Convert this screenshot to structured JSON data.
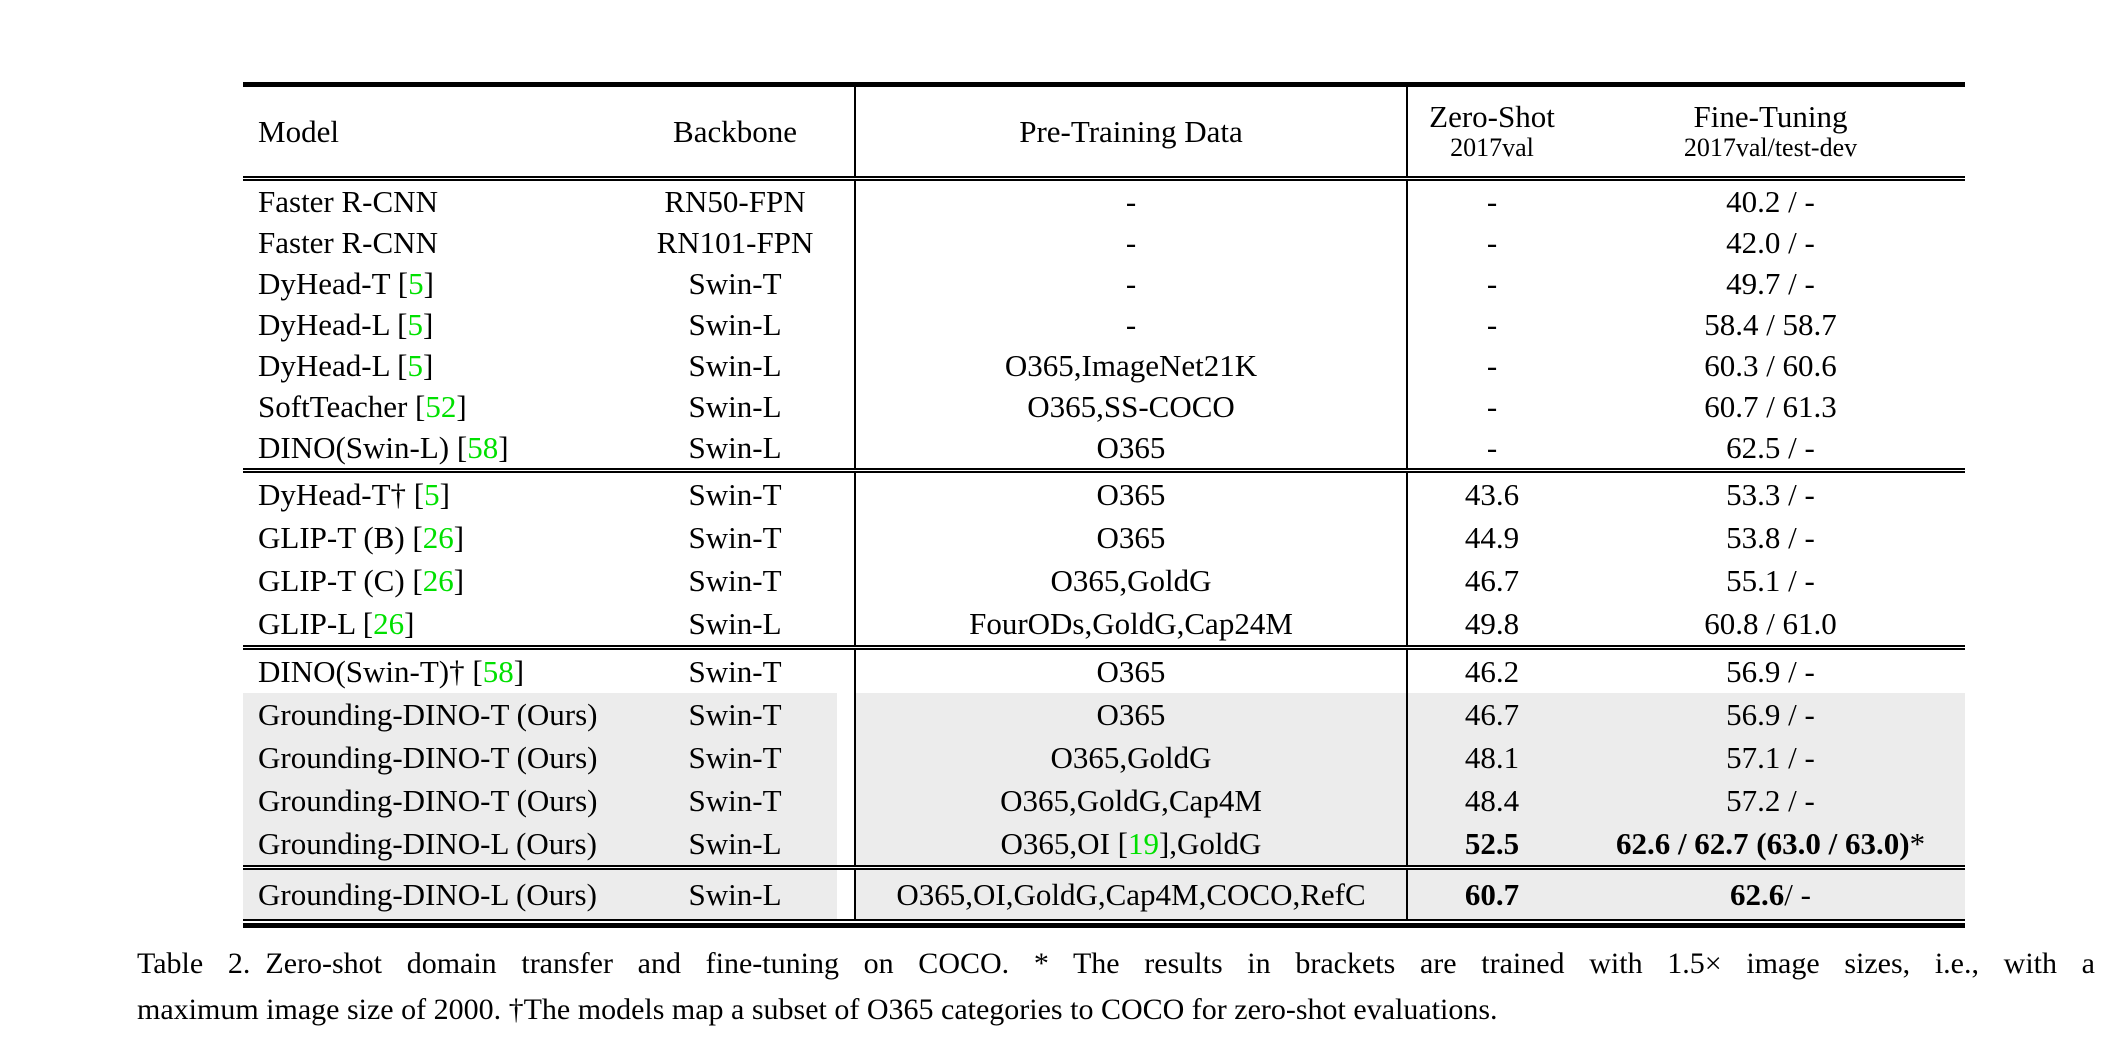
{
  "colors": {
    "citation_green": "#00E000",
    "row_shade": "#ECECEC"
  },
  "table": {
    "columns": {
      "model": "Model",
      "backbone": "Backbone",
      "pretrain": "Pre-Training Data",
      "zeroshot_title": "Zero-Shot",
      "zeroshot_sub": "2017val",
      "finetune_title": "Fine-Tuning",
      "finetune_sub": "2017val/test-dev"
    },
    "groups": [
      {
        "rows": [
          {
            "model": [
              {
                "t": "Faster R-CNN"
              }
            ],
            "backbone": "RN50-FPN",
            "pretrain": [
              {
                "t": "-"
              }
            ],
            "zs": "-",
            "ft": [
              {
                "t": "40.2 / -"
              }
            ]
          },
          {
            "model": [
              {
                "t": "Faster R-CNN"
              }
            ],
            "backbone": "RN101-FPN",
            "pretrain": [
              {
                "t": "-"
              }
            ],
            "zs": "-",
            "ft": [
              {
                "t": "42.0 / -"
              }
            ]
          },
          {
            "model": [
              {
                "t": "DyHead-T ["
              },
              {
                "t": "5",
                "g": true
              },
              {
                "t": "]"
              }
            ],
            "backbone": "Swin-T",
            "pretrain": [
              {
                "t": "-"
              }
            ],
            "zs": "-",
            "ft": [
              {
                "t": "49.7 / -"
              }
            ]
          },
          {
            "model": [
              {
                "t": "DyHead-L ["
              },
              {
                "t": "5",
                "g": true
              },
              {
                "t": "]"
              }
            ],
            "backbone": "Swin-L",
            "pretrain": [
              {
                "t": "-"
              }
            ],
            "zs": "-",
            "ft": [
              {
                "t": "58.4 / 58.7"
              }
            ]
          },
          {
            "model": [
              {
                "t": "DyHead-L ["
              },
              {
                "t": "5",
                "g": true
              },
              {
                "t": "]"
              }
            ],
            "backbone": "Swin-L",
            "pretrain": [
              {
                "t": "O365,ImageNet21K"
              }
            ],
            "zs": "-",
            "ft": [
              {
                "t": "60.3 / 60.6"
              }
            ]
          },
          {
            "model": [
              {
                "t": "SoftTeacher ["
              },
              {
                "t": "52",
                "g": true
              },
              {
                "t": "]"
              }
            ],
            "backbone": "Swin-L",
            "pretrain": [
              {
                "t": "O365,SS-COCO"
              }
            ],
            "zs": "-",
            "ft": [
              {
                "t": "60.7 / 61.3"
              }
            ]
          },
          {
            "model": [
              {
                "t": "DINO(Swin-L) ["
              },
              {
                "t": "58",
                "g": true
              },
              {
                "t": "]"
              }
            ],
            "backbone": "Swin-L",
            "pretrain": [
              {
                "t": "O365"
              }
            ],
            "zs": "-",
            "ft": [
              {
                "t": "62.5 / -"
              }
            ]
          }
        ]
      },
      {
        "rows": [
          {
            "model": [
              {
                "t": "DyHead-T† ["
              },
              {
                "t": "5",
                "g": true
              },
              {
                "t": "]"
              }
            ],
            "backbone": "Swin-T",
            "pretrain": [
              {
                "t": "O365"
              }
            ],
            "zs": "43.6",
            "ft": [
              {
                "t": "53.3 / -"
              }
            ]
          },
          {
            "model": [
              {
                "t": "GLIP-T (B) ["
              },
              {
                "t": "26",
                "g": true
              },
              {
                "t": "]"
              }
            ],
            "backbone": "Swin-T",
            "pretrain": [
              {
                "t": "O365"
              }
            ],
            "zs": "44.9",
            "ft": [
              {
                "t": "53.8 / -"
              }
            ]
          },
          {
            "model": [
              {
                "t": "GLIP-T (C) ["
              },
              {
                "t": "26",
                "g": true
              },
              {
                "t": "]"
              }
            ],
            "backbone": "Swin-T",
            "pretrain": [
              {
                "t": "O365,GoldG"
              }
            ],
            "zs": "46.7",
            "ft": [
              {
                "t": "55.1 / -"
              }
            ]
          },
          {
            "model": [
              {
                "t": "GLIP-L ["
              },
              {
                "t": "26",
                "g": true
              },
              {
                "t": "]"
              }
            ],
            "backbone": "Swin-L",
            "pretrain": [
              {
                "t": "FourODs,GoldG,Cap24M"
              }
            ],
            "zs": "49.8",
            "ft": [
              {
                "t": "60.8 / 61.0"
              }
            ]
          }
        ]
      },
      {
        "rows": [
          {
            "model": [
              {
                "t": "DINO(Swin-T)† ["
              },
              {
                "t": "58",
                "g": true
              },
              {
                "t": "]"
              }
            ],
            "backbone": "Swin-T",
            "pretrain": [
              {
                "t": "O365"
              }
            ],
            "zs": "46.2",
            "ft": [
              {
                "t": "56.9 / -"
              }
            ]
          },
          {
            "shaded": true,
            "model": [
              {
                "t": "Grounding-DINO-T (Ours)"
              }
            ],
            "backbone": "Swin-T",
            "pretrain": [
              {
                "t": "O365"
              }
            ],
            "zs": "46.7",
            "ft": [
              {
                "t": "56.9 / -"
              }
            ]
          },
          {
            "shaded": true,
            "model": [
              {
                "t": "Grounding-DINO-T (Ours)"
              }
            ],
            "backbone": "Swin-T",
            "pretrain": [
              {
                "t": "O365,GoldG"
              }
            ],
            "zs": "48.1",
            "ft": [
              {
                "t": "57.1 / -"
              }
            ]
          },
          {
            "shaded": true,
            "model": [
              {
                "t": "Grounding-DINO-T (Ours)"
              }
            ],
            "backbone": "Swin-T",
            "pretrain": [
              {
                "t": "O365,GoldG,Cap4M"
              }
            ],
            "zs": "48.4",
            "ft": [
              {
                "t": "57.2 / -"
              }
            ]
          },
          {
            "shaded": true,
            "model": [
              {
                "t": "Grounding-DINO-L (Ours)"
              }
            ],
            "backbone": "Swin-L",
            "pretrain": [
              {
                "t": "O365,OI ["
              },
              {
                "t": "19",
                "g": true
              },
              {
                "t": "],GoldG"
              }
            ],
            "zs": "52.5",
            "zs_b": true,
            "ft": [
              {
                "t": "62.6 / 62.7 (63.0 / 63.0)",
                "b": true
              },
              {
                "t": "*"
              }
            ]
          }
        ]
      },
      {
        "rows": [
          {
            "shaded": true,
            "model": [
              {
                "t": "Grounding-DINO-L (Ours)"
              }
            ],
            "backbone": "Swin-L",
            "pretrain": [
              {
                "t": "O365,OI,GoldG,Cap4M,COCO,RefC"
              }
            ],
            "zs": "60.7",
            "zs_b": true,
            "ft": [
              {
                "t": "62.6",
                "b": true
              },
              {
                "t": " / -"
              }
            ]
          }
        ]
      }
    ]
  },
  "caption": {
    "line1": "Table 2. Zero-shot domain transfer and fine-tuning on COCO. * The results in brackets are trained with 1.5× image sizes, i.e., with a",
    "line2": "maximum image size of 2000. †The models map a subset of O365 categories to COCO for zero-shot evaluations."
  }
}
